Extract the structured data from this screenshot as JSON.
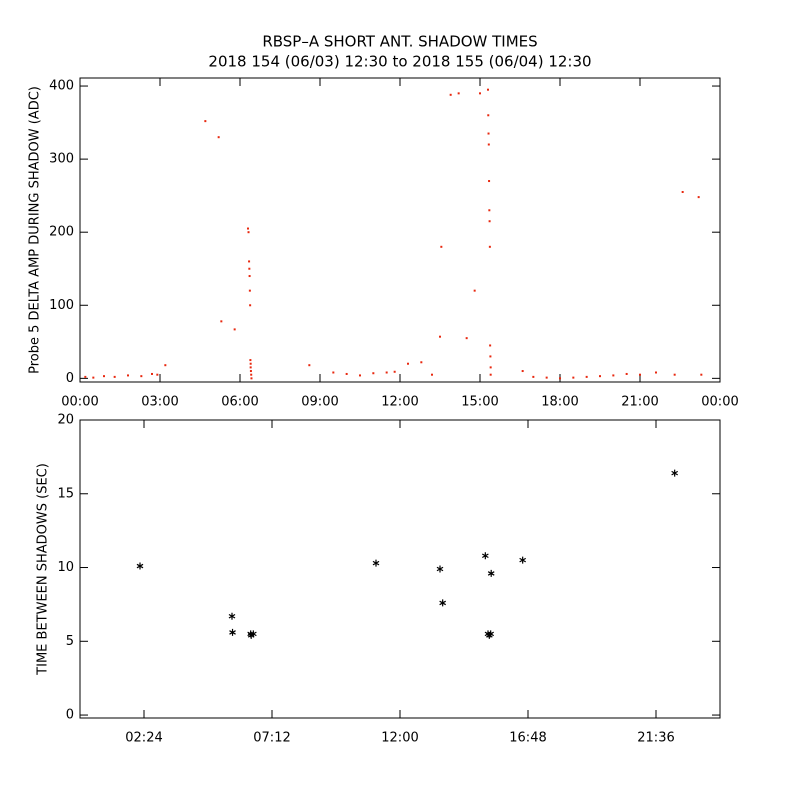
{
  "chart_data": [
    {
      "type": "scatter",
      "title": "RBSP–A SHORT ANT. SHADOW TIMES",
      "subtitle": "2018 154 (06/03) 12:30 to 2018 155 (06/04) 12:30",
      "y_label": "Probe 5 DELTA AMP DURING SHADOW (ADC)",
      "color": "#e8280f",
      "xlim": [
        0,
        24
      ],
      "ylim": [
        -5,
        411
      ],
      "xticks": [
        {
          "value": 0,
          "label": "00:00"
        },
        {
          "value": 3,
          "label": "03:00"
        },
        {
          "value": 6,
          "label": "06:00"
        },
        {
          "value": 9,
          "label": "09:00"
        },
        {
          "value": 12,
          "label": "12:00"
        },
        {
          "value": 15,
          "label": "15:00"
        },
        {
          "value": 18,
          "label": "18:00"
        },
        {
          "value": 21,
          "label": "21:00"
        },
        {
          "value": 24,
          "label": "00:00"
        }
      ],
      "yticks": [
        0,
        100,
        200,
        300,
        400
      ],
      "x": [
        0.2,
        0.5,
        0.9,
        1.3,
        1.8,
        2.3,
        2.7,
        2.9,
        3.2,
        4.7,
        5.2,
        5.3,
        5.8,
        6.3,
        6.32,
        6.34,
        6.35,
        6.36,
        6.37,
        6.38,
        6.39,
        6.4,
        6.4,
        6.41,
        6.42,
        6.43,
        8.6,
        9.5,
        10.0,
        10.5,
        11.0,
        11.5,
        11.8,
        12.3,
        12.8,
        13.2,
        13.5,
        13.55,
        13.9,
        14.2,
        14.5,
        14.8,
        15.0,
        15.3,
        15.31,
        15.32,
        15.33,
        15.34,
        15.35,
        15.36,
        15.37,
        15.38,
        15.39,
        15.4,
        15.4,
        16.6,
        17.0,
        17.5,
        18.0,
        18.5,
        19.0,
        19.5,
        20.0,
        20.5,
        21.0,
        21.6,
        22.3,
        22.6,
        23.2,
        23.3
      ],
      "values": [
        2,
        1,
        3,
        2,
        4,
        3,
        6,
        5,
        18,
        352,
        330,
        78,
        67,
        205,
        200,
        160,
        150,
        140,
        120,
        100,
        25,
        20,
        15,
        10,
        5,
        0,
        18,
        8,
        6,
        4,
        7,
        8,
        9,
        20,
        22,
        5,
        57,
        180,
        388,
        390,
        55,
        120,
        390,
        395,
        360,
        335,
        320,
        270,
        230,
        215,
        180,
        45,
        30,
        15,
        5,
        10,
        2,
        1,
        0,
        1,
        2,
        3,
        4,
        6,
        5,
        8,
        5,
        255,
        248,
        5
      ]
    },
    {
      "type": "scatter",
      "y_label": "TIME BETWEEN SHADOWS (SEC)",
      "color": "#000000",
      "marker": "asterisk",
      "xlim": [
        0,
        24
      ],
      "ylim": [
        -0.2,
        20
      ],
      "xticks": [
        {
          "value": 2.4,
          "label": "02:24"
        },
        {
          "value": 7.2,
          "label": "07:12"
        },
        {
          "value": 12,
          "label": "12:00"
        },
        {
          "value": 16.8,
          "label": "16:48"
        },
        {
          "value": 21.6,
          "label": "21:36"
        }
      ],
      "yticks": [
        0,
        5,
        10,
        15,
        20
      ],
      "x": [
        2.25,
        5.7,
        5.72,
        6.4,
        6.42,
        6.5,
        11.1,
        13.5,
        13.6,
        15.2,
        15.3,
        15.35,
        15.4,
        15.42,
        16.6,
        22.3
      ],
      "values": [
        10.1,
        6.7,
        5.6,
        5.5,
        5.4,
        5.5,
        10.3,
        9.9,
        7.6,
        10.8,
        5.5,
        5.4,
        5.5,
        9.6,
        10.5,
        16.4
      ]
    }
  ]
}
